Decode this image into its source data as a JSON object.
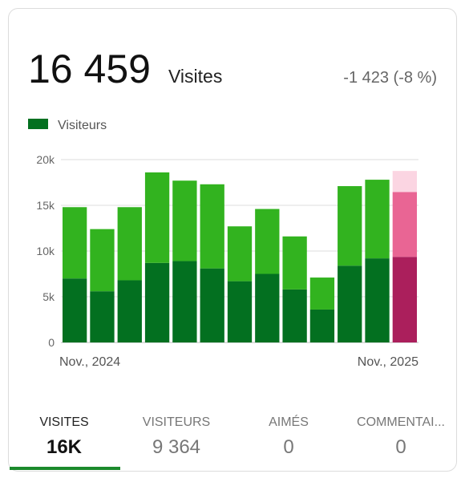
{
  "header": {
    "total": "16 459",
    "unit": "Visites",
    "change": "-1 423 (-8 %)"
  },
  "chart_data": {
    "type": "stacked-bar",
    "categories": [
      "Nov., 2024",
      null,
      null,
      null,
      null,
      null,
      null,
      null,
      null,
      null,
      null,
      null,
      "Nov., 2025"
    ],
    "series": [
      {
        "name": "Visiteurs",
        "color": "#037020",
        "highlight_color": "#ab1f5c",
        "values": [
          7000,
          5600,
          6800,
          8700,
          8900,
          8100,
          6700,
          7500,
          5800,
          3600,
          8400,
          9200,
          9364
        ]
      },
      {
        "color": "#32b31f",
        "highlight_color": "#e96594",
        "values": [
          7800,
          6800,
          8000,
          9900,
          8800,
          9200,
          6000,
          7100,
          5800,
          3500,
          8700,
          8600,
          7095
        ]
      },
      {
        "color": "#fbd5e2",
        "highlight_color": "#fbd5e2",
        "values": [
          null,
          null,
          null,
          null,
          null,
          null,
          null,
          null,
          null,
          null,
          null,
          null,
          2300
        ]
      }
    ],
    "highlight_index": 12,
    "ylim": [
      0,
      20000
    ],
    "yticks": [
      0,
      {
        "value": 5000,
        "label": "5k"
      },
      {
        "value": 10000,
        "label": "10k"
      },
      {
        "value": 15000,
        "label": "15k"
      },
      {
        "value": 20000,
        "label": "20k"
      }
    ],
    "grid": true
  },
  "tabs": [
    {
      "label": "VISITES",
      "value": "16K"
    },
    {
      "label": "VISITEURS",
      "value": "9 364"
    },
    {
      "label": "AIMÉS",
      "value": "0"
    },
    {
      "label": "COMMENTAI...",
      "value": "0"
    }
  ]
}
